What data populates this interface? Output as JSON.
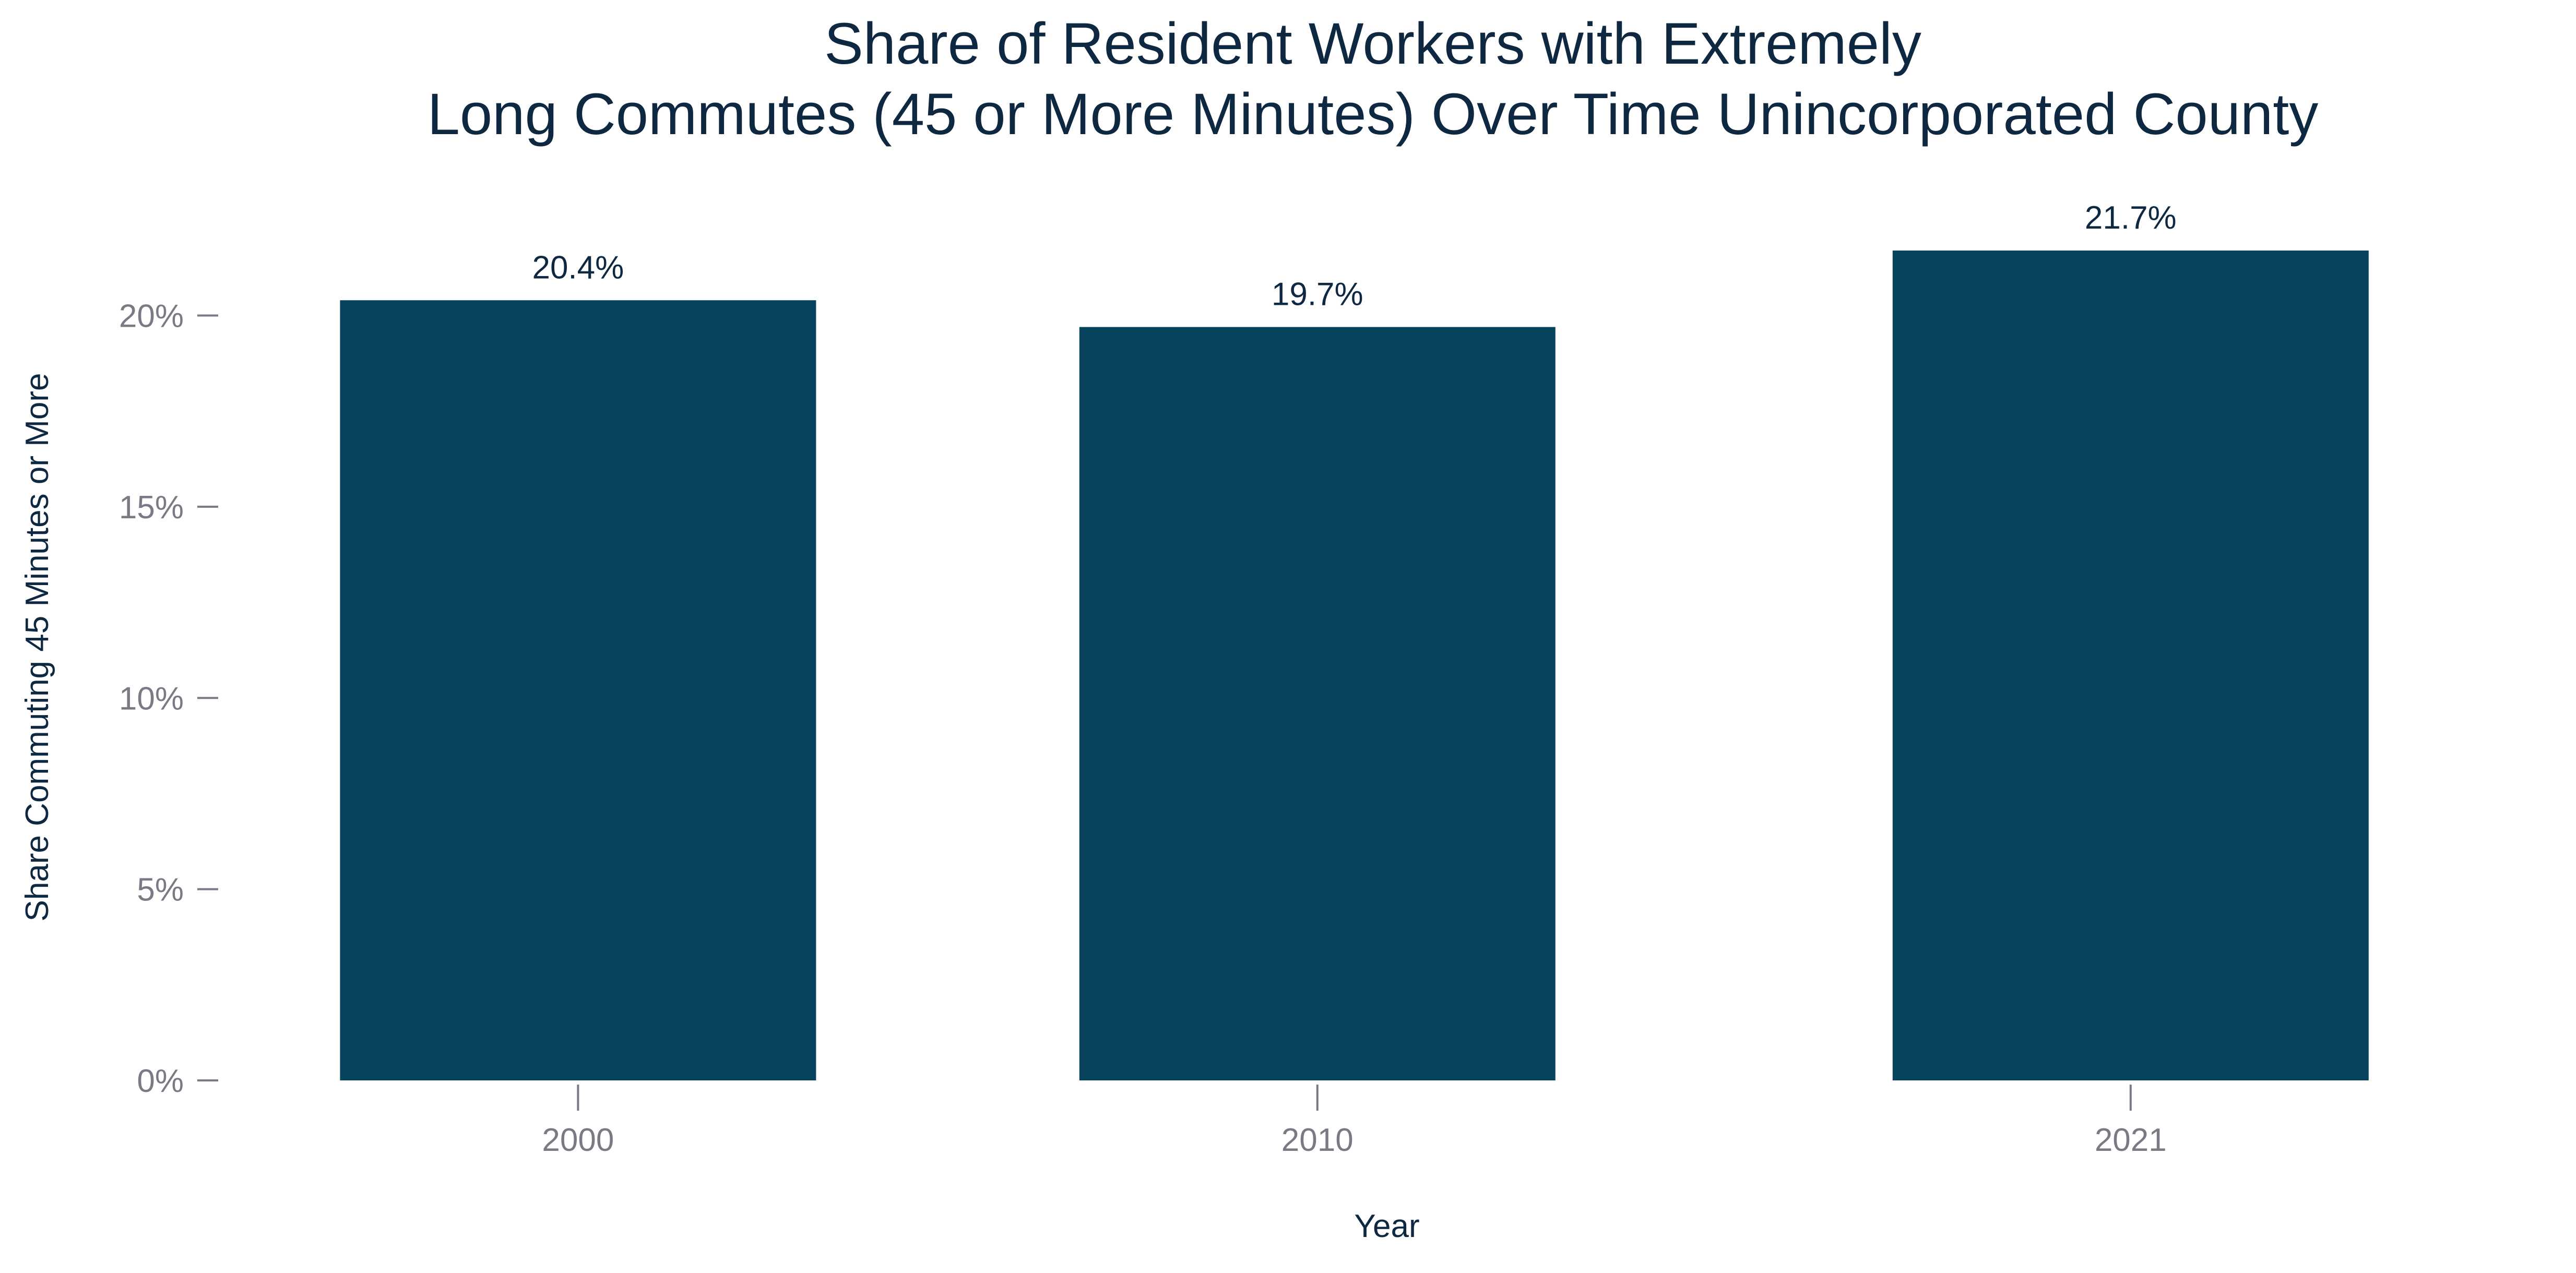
{
  "chart_data": {
    "type": "bar",
    "title": [
      "Share of Resident Workers with Extremely",
      "Long Commutes (45 or More Minutes) Over Time Unincorporated County"
    ],
    "xlabel": "Year",
    "ylabel": "Share Commuting 45 Minutes or More",
    "x": [
      2000,
      2010,
      2021
    ],
    "categories": [
      "2000",
      "2010",
      "2021"
    ],
    "values": [
      20.4,
      19.7,
      21.7
    ],
    "data_labels": [
      "20.4%",
      "19.7%",
      "21.7%"
    ],
    "yticks": [
      0,
      5,
      10,
      15,
      20
    ],
    "ytick_labels": [
      "0%",
      "5%",
      "10%",
      "15%",
      "20%"
    ],
    "ylim": [
      0,
      21.7
    ],
    "xlim": [
      1995.5,
      2026.0
    ],
    "grid": false,
    "legend": "none",
    "colors": {
      "bar": "#08435e",
      "title": "#0e2841",
      "axis_label": "#0e2841",
      "tick_label": "#7a7a84",
      "tick_mark": "#7a7a84",
      "data_label": "#0e2841",
      "background": "#ffffff"
    }
  }
}
